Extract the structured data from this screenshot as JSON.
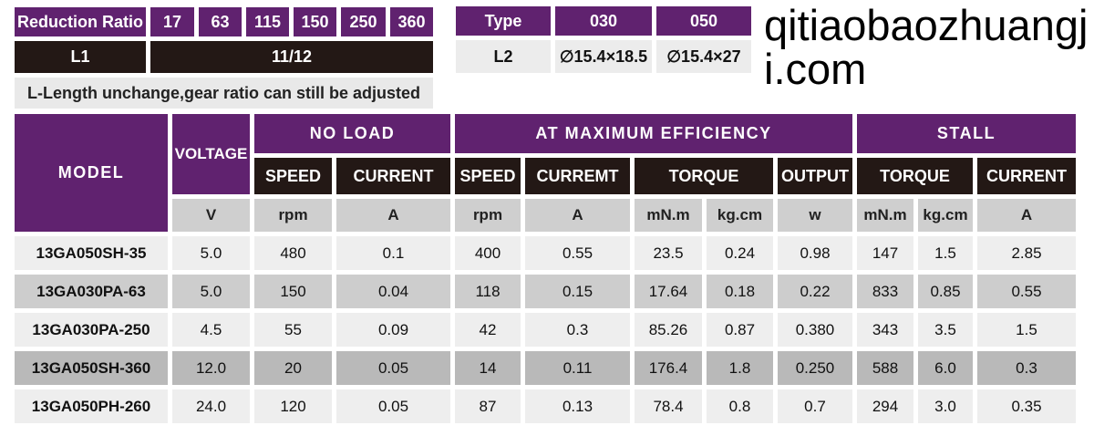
{
  "ratio_table": {
    "label": "Reduction Ratio",
    "ratios": [
      "17",
      "63",
      "115",
      "150",
      "250",
      "360"
    ],
    "l1_label": "L1",
    "l1_value": "11/12",
    "note": "L-Length unchange,gear ratio can still be adjusted"
  },
  "type_table": {
    "label": "Type",
    "types": [
      "030",
      "050"
    ],
    "l2_label": "L2",
    "l2_values": [
      "∅15.4×18.5",
      "∅15.4×27"
    ]
  },
  "spec_table": {
    "groups": {
      "model": "MODEL",
      "voltage": "VOLTAGE",
      "no_load": "NO LOAD",
      "max_eff": "AT MAXIMUM EFFICIENCY",
      "stall": "STALL"
    },
    "subheaders": [
      "SPEED",
      "CURRENT",
      "SPEED",
      "CURREMT",
      "TORQUE",
      "OUTPUT",
      "TORQUE",
      "CURRENT"
    ],
    "units": [
      "V",
      "rpm",
      "A",
      "rpm",
      "A",
      "mN.m",
      "kg.cm",
      "w",
      "mN.m",
      "kg.cm",
      "A"
    ],
    "rows": [
      [
        "13GA050SH-35",
        "5.0",
        "480",
        "0.1",
        "400",
        "0.55",
        "23.5",
        "0.24",
        "0.98",
        "147",
        "1.5",
        "2.85"
      ],
      [
        "13GA030PA-63",
        "5.0",
        "150",
        "0.04",
        "118",
        "0.15",
        "17.64",
        "0.18",
        "0.22",
        "833",
        "0.85",
        "0.55"
      ],
      [
        "13GA030PA-250",
        "4.5",
        "55",
        "0.09",
        "42",
        "0.3",
        "85.26",
        "0.87",
        "0.380",
        "343",
        "3.5",
        "1.5"
      ],
      [
        "13GA050SH-360",
        "12.0",
        "20",
        "0.05",
        "14",
        "0.11",
        "176.4",
        "1.8",
        "0.250",
        "588",
        "6.0",
        "0.3"
      ],
      [
        "13GA050PH-260",
        "24.0",
        "120",
        "0.05",
        "87",
        "0.13",
        "78.4",
        "0.8",
        "0.7",
        "294",
        "3.0",
        "0.35"
      ]
    ]
  },
  "watermark": "qitiaobaozhuangji.com",
  "colors": {
    "purple": "#60226f",
    "black": "#231815",
    "unit_gray": "#cfcfcf",
    "row_light": "#eeeeee",
    "row_dark": "#b9b9b9"
  }
}
